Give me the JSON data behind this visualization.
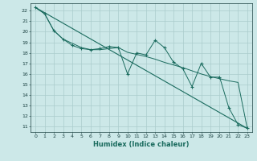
{
  "xlabel": "Humidex (Indice chaleur)",
  "bg_color": "#cce8e8",
  "grid_color": "#aacccc",
  "line_color": "#1a6b5e",
  "xlim": [
    -0.5,
    23.5
  ],
  "ylim": [
    10.5,
    22.7
  ],
  "yticks": [
    11,
    12,
    13,
    14,
    15,
    16,
    17,
    18,
    19,
    20,
    21,
    22
  ],
  "xticks": [
    0,
    1,
    2,
    3,
    4,
    5,
    6,
    7,
    8,
    9,
    10,
    11,
    12,
    13,
    14,
    15,
    16,
    17,
    18,
    19,
    20,
    21,
    22,
    23
  ],
  "straight_line_x": [
    0,
    23
  ],
  "straight_line_y": [
    22.3,
    10.85
  ],
  "zigzag_x": [
    0,
    1,
    2,
    3,
    4,
    5,
    6,
    7,
    8,
    9,
    10,
    11,
    12,
    13,
    14,
    15,
    16,
    17,
    18,
    19,
    20,
    21,
    22,
    23
  ],
  "zigzag_y": [
    22.3,
    21.7,
    20.1,
    19.3,
    18.7,
    18.4,
    18.3,
    18.4,
    18.6,
    18.5,
    16.0,
    18.0,
    17.8,
    19.2,
    18.5,
    17.1,
    16.5,
    14.8,
    17.0,
    15.7,
    15.7,
    12.8,
    11.2,
    10.85
  ],
  "smooth_x": [
    0,
    1,
    2,
    3,
    4,
    5,
    6,
    7,
    8,
    9,
    10,
    11,
    12,
    13,
    14,
    15,
    16,
    17,
    18,
    19,
    20,
    21,
    22,
    23
  ],
  "smooth_y": [
    22.3,
    21.7,
    20.1,
    19.3,
    18.9,
    18.5,
    18.3,
    18.3,
    18.4,
    18.5,
    18.05,
    17.85,
    17.65,
    17.4,
    17.1,
    16.85,
    16.6,
    16.3,
    16.0,
    15.75,
    15.55,
    15.35,
    15.2,
    10.85
  ]
}
